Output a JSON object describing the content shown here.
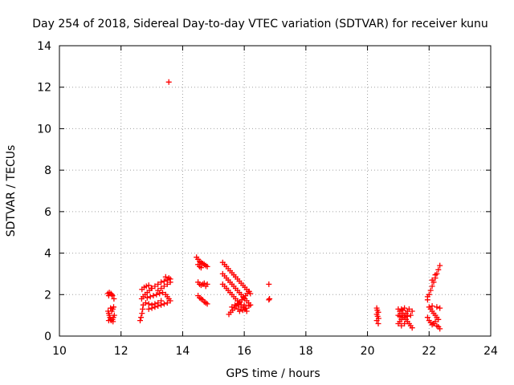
{
  "chart_data": {
    "type": "scatter",
    "title": "Day 254 of 2018, Sidereal Day-to-day VTEC variation (SDTVAR) for receiver kunu",
    "xlabel": "GPS time / hours",
    "ylabel": "SDTVAR / TECUs",
    "xlim": [
      10,
      24
    ],
    "ylim": [
      0,
      14
    ],
    "xticks": [
      10,
      12,
      14,
      16,
      18,
      20,
      22,
      24
    ],
    "yticks": [
      0,
      2,
      4,
      6,
      8,
      10,
      12,
      14
    ],
    "grid": true,
    "marker": "+",
    "marker_color": "#ff0000",
    "series": [
      {
        "name": "SDTVAR",
        "points": [
          [
            11.57,
            2.05
          ],
          [
            11.62,
            2.1
          ],
          [
            11.67,
            2.05
          ],
          [
            11.72,
            1.95
          ],
          [
            11.77,
            1.8
          ],
          [
            11.6,
            1.95
          ],
          [
            11.7,
            2.0
          ],
          [
            11.58,
            1.2
          ],
          [
            11.6,
            1.1
          ],
          [
            11.62,
            1.0
          ],
          [
            11.64,
            0.9
          ],
          [
            11.66,
            0.8
          ],
          [
            11.68,
            0.75
          ],
          [
            11.72,
            0.8
          ],
          [
            11.75,
            0.9
          ],
          [
            11.78,
            1.0
          ],
          [
            11.7,
            1.2
          ],
          [
            11.73,
            1.3
          ],
          [
            11.76,
            1.4
          ],
          [
            11.66,
            1.35
          ],
          [
            11.6,
            0.75
          ],
          [
            11.74,
            0.7
          ],
          [
            12.62,
            0.75
          ],
          [
            12.65,
            0.9
          ],
          [
            12.68,
            1.1
          ],
          [
            12.7,
            1.3
          ],
          [
            12.72,
            1.5
          ],
          [
            12.67,
            1.8
          ],
          [
            12.72,
            1.9
          ],
          [
            12.78,
            2.0
          ],
          [
            12.85,
            2.1
          ],
          [
            12.92,
            2.2
          ],
          [
            12.98,
            2.3
          ],
          [
            12.68,
            2.25
          ],
          [
            12.75,
            2.35
          ],
          [
            12.82,
            2.4
          ],
          [
            12.9,
            2.45
          ],
          [
            12.8,
            1.6
          ],
          [
            12.9,
            1.55
          ],
          [
            13.0,
            1.5
          ],
          [
            13.1,
            1.55
          ],
          [
            13.2,
            1.6
          ],
          [
            13.3,
            1.7
          ],
          [
            12.85,
            1.85
          ],
          [
            12.95,
            1.9
          ],
          [
            13.05,
            1.95
          ],
          [
            13.15,
            2.0
          ],
          [
            13.25,
            2.05
          ],
          [
            13.35,
            2.1
          ],
          [
            13.45,
            2.0
          ],
          [
            13.5,
            1.9
          ],
          [
            13.55,
            1.8
          ],
          [
            13.6,
            1.7
          ],
          [
            13.0,
            2.3
          ],
          [
            13.1,
            2.4
          ],
          [
            13.2,
            2.5
          ],
          [
            13.3,
            2.6
          ],
          [
            13.4,
            2.65
          ],
          [
            13.5,
            2.7
          ],
          [
            13.6,
            2.75
          ],
          [
            13.2,
            2.2
          ],
          [
            13.3,
            2.3
          ],
          [
            13.4,
            2.4
          ],
          [
            13.5,
            2.5
          ],
          [
            13.6,
            2.6
          ],
          [
            13.45,
            2.85
          ],
          [
            13.55,
            2.8
          ],
          [
            12.9,
            1.3
          ],
          [
            13.0,
            1.35
          ],
          [
            13.1,
            1.4
          ],
          [
            13.2,
            1.45
          ],
          [
            13.3,
            1.5
          ],
          [
            13.4,
            1.55
          ],
          [
            13.5,
            1.6
          ],
          [
            13.55,
            12.25
          ],
          [
            14.45,
            3.8
          ],
          [
            14.5,
            3.7
          ],
          [
            14.55,
            3.6
          ],
          [
            14.6,
            3.55
          ],
          [
            14.65,
            3.5
          ],
          [
            14.7,
            3.45
          ],
          [
            14.75,
            3.4
          ],
          [
            14.8,
            3.35
          ],
          [
            14.5,
            3.45
          ],
          [
            14.55,
            3.35
          ],
          [
            14.6,
            3.3
          ],
          [
            14.5,
            2.6
          ],
          [
            14.55,
            2.5
          ],
          [
            14.6,
            2.45
          ],
          [
            14.65,
            2.5
          ],
          [
            14.7,
            2.55
          ],
          [
            14.75,
            2.4
          ],
          [
            14.8,
            2.5
          ],
          [
            14.5,
            1.95
          ],
          [
            14.55,
            1.85
          ],
          [
            14.6,
            1.8
          ],
          [
            14.65,
            1.75
          ],
          [
            14.7,
            1.65
          ],
          [
            14.75,
            1.6
          ],
          [
            14.8,
            1.55
          ],
          [
            15.3,
            3.55
          ],
          [
            15.36,
            3.45
          ],
          [
            15.42,
            3.35
          ],
          [
            15.48,
            3.25
          ],
          [
            15.54,
            3.15
          ],
          [
            15.6,
            3.05
          ],
          [
            15.66,
            2.95
          ],
          [
            15.72,
            2.85
          ],
          [
            15.78,
            2.75
          ],
          [
            15.84,
            2.65
          ],
          [
            15.9,
            2.55
          ],
          [
            15.96,
            2.45
          ],
          [
            16.02,
            2.35
          ],
          [
            16.08,
            2.25
          ],
          [
            16.14,
            2.15
          ],
          [
            16.2,
            2.05
          ],
          [
            15.3,
            3.0
          ],
          [
            15.36,
            2.9
          ],
          [
            15.42,
            2.8
          ],
          [
            15.48,
            2.7
          ],
          [
            15.54,
            2.6
          ],
          [
            15.6,
            2.5
          ],
          [
            15.66,
            2.4
          ],
          [
            15.72,
            2.3
          ],
          [
            15.78,
            2.2
          ],
          [
            15.84,
            2.1
          ],
          [
            15.9,
            2.0
          ],
          [
            15.96,
            1.9
          ],
          [
            16.02,
            1.8
          ],
          [
            16.08,
            1.7
          ],
          [
            16.14,
            1.6
          ],
          [
            16.2,
            1.5
          ],
          [
            15.3,
            2.5
          ],
          [
            15.36,
            2.4
          ],
          [
            15.42,
            2.3
          ],
          [
            15.48,
            2.2
          ],
          [
            15.54,
            2.1
          ],
          [
            15.6,
            2.0
          ],
          [
            15.66,
            1.9
          ],
          [
            15.72,
            1.8
          ],
          [
            15.78,
            1.7
          ],
          [
            15.84,
            1.6
          ],
          [
            15.9,
            1.5
          ],
          [
            15.96,
            1.4
          ],
          [
            16.02,
            1.3
          ],
          [
            16.08,
            1.2
          ],
          [
            15.5,
            1.05
          ],
          [
            15.56,
            1.15
          ],
          [
            15.62,
            1.25
          ],
          [
            15.68,
            1.35
          ],
          [
            15.74,
            1.45
          ],
          [
            15.8,
            1.55
          ],
          [
            15.86,
            1.65
          ],
          [
            15.92,
            1.75
          ],
          [
            15.98,
            1.85
          ],
          [
            16.04,
            1.95
          ],
          [
            16.1,
            2.05
          ],
          [
            16.16,
            2.15
          ],
          [
            15.6,
            1.4
          ],
          [
            15.7,
            1.5
          ],
          [
            15.8,
            1.3
          ],
          [
            15.9,
            1.4
          ],
          [
            16.0,
            1.5
          ],
          [
            15.85,
            1.2
          ],
          [
            15.95,
            1.25
          ],
          [
            16.05,
            1.35
          ],
          [
            16.15,
            1.45
          ],
          [
            16.8,
            2.5
          ],
          [
            16.82,
            1.8
          ],
          [
            16.8,
            1.75
          ],
          [
            20.3,
            1.35
          ],
          [
            20.32,
            1.25
          ],
          [
            20.35,
            1.15
          ],
          [
            20.3,
            1.05
          ],
          [
            20.33,
            0.95
          ],
          [
            20.36,
            0.85
          ],
          [
            20.3,
            0.75
          ],
          [
            20.35,
            0.6
          ],
          [
            21.0,
            1.3
          ],
          [
            21.05,
            1.2
          ],
          [
            21.1,
            1.1
          ],
          [
            21.15,
            1.0
          ],
          [
            21.2,
            0.9
          ],
          [
            21.25,
            0.8
          ],
          [
            21.3,
            0.7
          ],
          [
            21.35,
            0.6
          ],
          [
            21.4,
            0.5
          ],
          [
            21.45,
            0.4
          ],
          [
            21.0,
            0.6
          ],
          [
            21.05,
            0.7
          ],
          [
            21.1,
            0.8
          ],
          [
            21.15,
            0.9
          ],
          [
            21.2,
            1.0
          ],
          [
            21.25,
            1.1
          ],
          [
            21.3,
            1.2
          ],
          [
            21.35,
            1.3
          ],
          [
            21.05,
            0.95
          ],
          [
            21.15,
            1.25
          ],
          [
            21.0,
            1.0
          ],
          [
            21.1,
            1.3
          ],
          [
            21.2,
            1.35
          ],
          [
            21.3,
            0.95
          ],
          [
            21.4,
            1.0
          ],
          [
            21.45,
            1.2
          ],
          [
            21.1,
            0.5
          ],
          [
            21.2,
            0.6
          ],
          [
            21.95,
            1.9
          ],
          [
            22.0,
            2.0
          ],
          [
            22.05,
            2.2
          ],
          [
            22.1,
            2.4
          ],
          [
            22.15,
            2.6
          ],
          [
            22.2,
            2.8
          ],
          [
            22.25,
            3.0
          ],
          [
            22.3,
            3.2
          ],
          [
            22.35,
            3.4
          ],
          [
            21.95,
            1.75
          ],
          [
            22.1,
            2.7
          ],
          [
            22.2,
            2.95
          ],
          [
            22.0,
            1.4
          ],
          [
            22.05,
            1.3
          ],
          [
            22.1,
            1.2
          ],
          [
            22.15,
            1.1
          ],
          [
            22.2,
            1.0
          ],
          [
            22.25,
            0.9
          ],
          [
            22.3,
            0.8
          ],
          [
            22.1,
            1.45
          ],
          [
            22.25,
            1.4
          ],
          [
            22.35,
            1.35
          ],
          [
            21.95,
            0.9
          ],
          [
            22.0,
            0.75
          ],
          [
            22.05,
            0.65
          ],
          [
            22.1,
            0.55
          ],
          [
            22.15,
            0.6
          ],
          [
            22.2,
            0.7
          ],
          [
            22.25,
            0.5
          ],
          [
            22.3,
            0.45
          ],
          [
            22.35,
            0.35
          ]
        ]
      }
    ]
  }
}
